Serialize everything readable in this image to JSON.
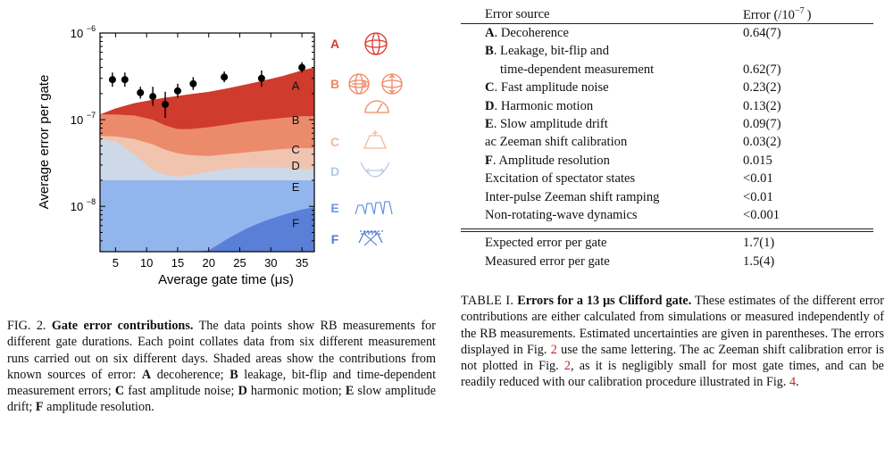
{
  "chart_data": {
    "type": "area",
    "xlabel": "Average gate time (μs)",
    "ylabel": "Average error per gate",
    "yscale": "log",
    "xlim": [
      2.5,
      37
    ],
    "ylim": [
      3e-09,
      1e-06
    ],
    "x_ticks": [
      5,
      10,
      15,
      20,
      25,
      30,
      35
    ],
    "x_tick_labels": [
      "5",
      "10",
      "15",
      "20",
      "25",
      "30",
      "35"
    ],
    "y_ticks": [
      1e-08,
      1e-07,
      1e-06
    ],
    "y_tick_labels": [
      "10",
      "10",
      "10"
    ],
    "y_tick_exponents": [
      "−8",
      "−7",
      "−6"
    ],
    "x": [
      2.5,
      5,
      8,
      11,
      13,
      15,
      17,
      20,
      23,
      26,
      29,
      32,
      35,
      37
    ],
    "series": [
      {
        "name": "F",
        "color": "#5a7fd6",
        "values": [
          3e-09,
          3e-09,
          3e-09,
          3e-09,
          3e-09,
          3e-09,
          3e-09,
          3.1e-09,
          4.2e-09,
          5.5e-09,
          6.8e-09,
          8e-09,
          9.2e-09,
          9.8e-09
        ]
      },
      {
        "name": "E",
        "color": "#93b5ee",
        "values": [
          2e-08,
          2e-08,
          2e-08,
          2e-08,
          2e-08,
          2e-08,
          2e-08,
          2e-08,
          2e-08,
          2e-08,
          2e-08,
          2e-08,
          2e-08,
          2e-08
        ]
      },
      {
        "name": "D",
        "color": "#cdd9e8",
        "values": [
          6e-08,
          5.6e-08,
          4e-08,
          2.6e-08,
          2.3e-08,
          2.2e-08,
          2.3e-08,
          2.5e-08,
          2.7e-08,
          2.8e-08,
          2.8e-08,
          2.8e-08,
          2.7e-08,
          2.7e-08
        ]
      },
      {
        "name": "C",
        "color": "#f1c4b0",
        "values": [
          6.5e-08,
          6.4e-08,
          6e-08,
          5.2e-08,
          4.5e-08,
          4.1e-08,
          3.9e-08,
          3.8e-08,
          4e-08,
          4.2e-08,
          4.4e-08,
          4.6e-08,
          4.7e-08,
          4.7e-08
        ]
      },
      {
        "name": "B",
        "color": "#ec8b6c",
        "values": [
          1.15e-07,
          1.15e-07,
          1.12e-07,
          1e-07,
          8.6e-08,
          7.8e-08,
          7.8e-08,
          8.2e-08,
          8.8e-08,
          9.5e-08,
          1e-07,
          1.05e-07,
          1.1e-07,
          1.1e-07
        ]
      },
      {
        "name": "A",
        "color": "#cf3b2c",
        "values": [
          1.15e-07,
          1.35e-07,
          1.55e-07,
          1.7e-07,
          1.8e-07,
          1.88e-07,
          1.97e-07,
          2.1e-07,
          2.3e-07,
          2.55e-07,
          2.85e-07,
          3.2e-07,
          3.7e-07,
          4e-07
        ]
      }
    ],
    "points": [
      {
        "x": 4.5,
        "y": 2.9e-07,
        "yerr": [
          2.4e-07,
          3.5e-07
        ]
      },
      {
        "x": 6.5,
        "y": 2.9e-07,
        "yerr": [
          2.4e-07,
          3.5e-07
        ]
      },
      {
        "x": 9,
        "y": 2.05e-07,
        "yerr": [
          1.75e-07,
          2.4e-07
        ]
      },
      {
        "x": 11,
        "y": 1.85e-07,
        "yerr": [
          1.45e-07,
          2.4e-07
        ]
      },
      {
        "x": 13,
        "y": 1.5e-07,
        "yerr": [
          1.05e-07,
          2.1e-07
        ]
      },
      {
        "x": 15,
        "y": 2.15e-07,
        "yerr": [
          1.8e-07,
          2.6e-07
        ]
      },
      {
        "x": 17.5,
        "y": 2.6e-07,
        "yerr": [
          2.2e-07,
          3.1e-07
        ]
      },
      {
        "x": 22.5,
        "y": 3.1e-07,
        "yerr": [
          2.7e-07,
          3.6e-07
        ]
      },
      {
        "x": 28.5,
        "y": 3e-07,
        "yerr": [
          2.4e-07,
          3.7e-07
        ]
      },
      {
        "x": 35,
        "y": 4e-07,
        "yerr": [
          3.5e-07,
          4.6e-07
        ]
      }
    ],
    "region_labels": [
      {
        "text": "A",
        "x": 34,
        "y": 2.5e-07
      },
      {
        "text": "B",
        "x": 34,
        "y": 1e-07
      },
      {
        "text": "C",
        "x": 34,
        "y": 4.6e-08
      },
      {
        "text": "D",
        "x": 34,
        "y": 3e-08
      },
      {
        "text": "E",
        "x": 34,
        "y": 1.7e-08
      },
      {
        "text": "F",
        "x": 34,
        "y": 6.5e-09
      }
    ],
    "legend": [
      {
        "letter": "A",
        "color": "#d93a2b"
      },
      {
        "letter": "B",
        "color": "#ee8a64"
      },
      {
        "letter": "C",
        "color": "#f2b99a"
      },
      {
        "letter": "D",
        "color": "#b3c9e4"
      },
      {
        "letter": "E",
        "color": "#6a97e6"
      },
      {
        "letter": "F",
        "color": "#4d78d4"
      }
    ]
  },
  "figure_caption": {
    "label": "FIG. 2.",
    "bold": "Gate error contributions.",
    "text": "The data points show RB measurements for different gate durations. Each point collates data from six different measurement runs carried out on six different days. Shaded areas show the contributions from known sources of error:",
    "items": [
      {
        "letter": "A",
        "desc": "decoherence;"
      },
      {
        "letter": "B",
        "desc": "leakage, bit-flip and time-dependent measurement errors;"
      },
      {
        "letter": "C",
        "desc": "fast amplitude noise;"
      },
      {
        "letter": "D",
        "desc": "harmonic motion;"
      },
      {
        "letter": "E",
        "desc": "slow amplitude drift;"
      },
      {
        "letter": "F",
        "desc": "amplitude resolution."
      }
    ]
  },
  "table": {
    "header_source": "Error source",
    "header_error": "Error (/10",
    "header_exp": "−7",
    "header_close": ")",
    "rows": [
      {
        "letter": "A",
        "source": "Decoherence",
        "error": "0.64(7)"
      },
      {
        "letter": "B",
        "source": "Leakage, bit-flip and",
        "error": ""
      },
      {
        "letter": "",
        "source": "time-dependent measurement",
        "error": "0.62(7)",
        "indent": true
      },
      {
        "letter": "C",
        "source": "Fast amplitude noise",
        "error": "0.23(2)"
      },
      {
        "letter": "D",
        "source": "Harmonic motion",
        "error": "0.13(2)"
      },
      {
        "letter": "E",
        "source": "Slow amplitude drift",
        "error": "0.09(7)"
      },
      {
        "letter": "",
        "source": "ac Zeeman shift calibration",
        "error": "0.03(2)"
      },
      {
        "letter": "F",
        "source": "Amplitude resolution",
        "error": "0.015"
      },
      {
        "letter": "",
        "source": "Excitation of spectator states",
        "error": "<0.01"
      },
      {
        "letter": "",
        "source": "Inter-pulse Zeeman shift ramping",
        "error": "<0.01"
      },
      {
        "letter": "",
        "source": "Non-rotating-wave dynamics",
        "error": "<0.001"
      }
    ],
    "summary": [
      {
        "source": "Expected error per gate",
        "error": "1.7(1)"
      },
      {
        "source": "Measured error per gate",
        "error": "1.5(4)"
      }
    ]
  },
  "table_caption": {
    "label": "TABLE I.",
    "bold": "Errors for a 13 μs Clifford gate.",
    "text1": "These estimates of the different error contributions are either calculated from simulations or measured independently of the RB measurements. Estimated uncertainties are given in parentheses. The errors displayed in Fig.",
    "ref1": "2",
    "text2": "use the same lettering. The ac Zeeman shift calibration error is not plotted in Fig.",
    "ref2": "2",
    "text3": ", as it is negligibly small for most gate times, and can be readily reduced with our calibration procedure illustrated in Fig.",
    "ref3": "4",
    "text4": "."
  }
}
